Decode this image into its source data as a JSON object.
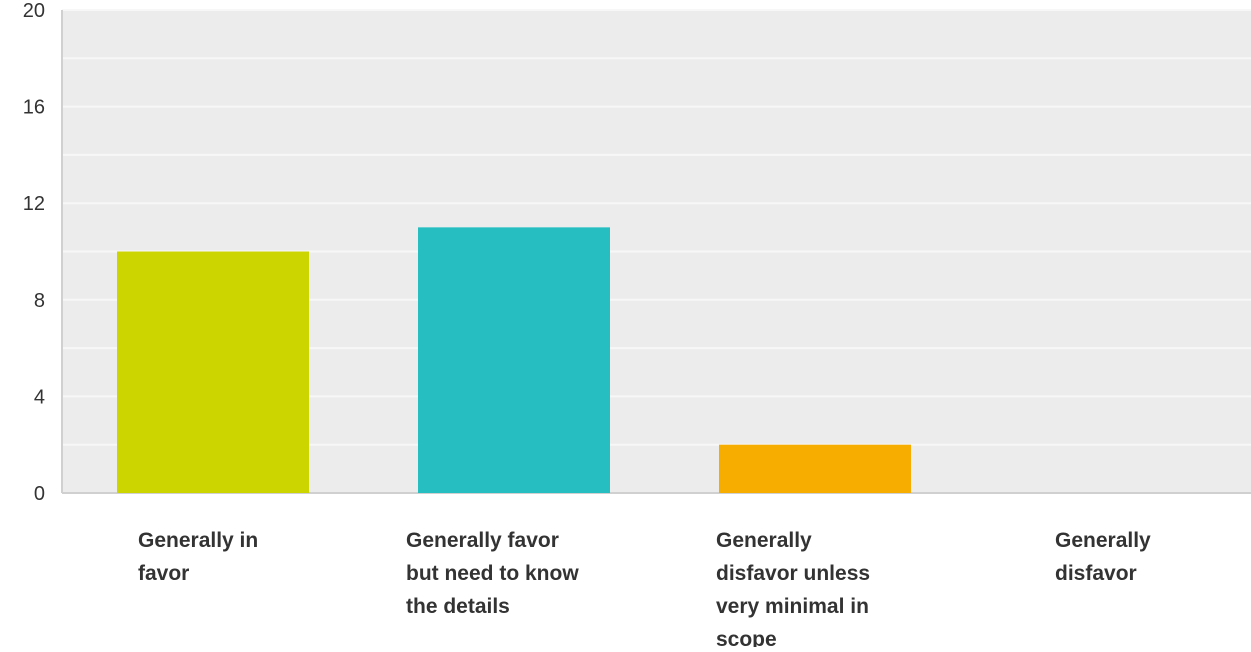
{
  "chart_data": {
    "type": "bar",
    "categories": [
      "Generally in favor",
      "Generally favor but need to know the details",
      "Generally disfavor unless very minimal in scope",
      "Generally disfavor"
    ],
    "category_label_lines": [
      [
        "Generally in",
        "favor"
      ],
      [
        "Generally favor",
        "but need to know",
        "the details"
      ],
      [
        "Generally",
        "disfavor unless",
        "very minimal in",
        "scope"
      ],
      [
        "Generally",
        "disfavor"
      ]
    ],
    "values": [
      10,
      11,
      2,
      0
    ],
    "bar_colors": [
      "#cdd500",
      "#26bec0",
      "#f7ad00",
      "#8e8e8e"
    ],
    "ylim": [
      0,
      20
    ],
    "yticks": [
      0,
      4,
      8,
      12,
      16,
      20
    ],
    "grid": true,
    "legend": "none",
    "title": "",
    "xlabel": "",
    "ylabel": ""
  },
  "colors": {
    "plot_background": "#ececec",
    "gridline": "#f7f7f7",
    "axis_line": "#d0d0d0"
  }
}
